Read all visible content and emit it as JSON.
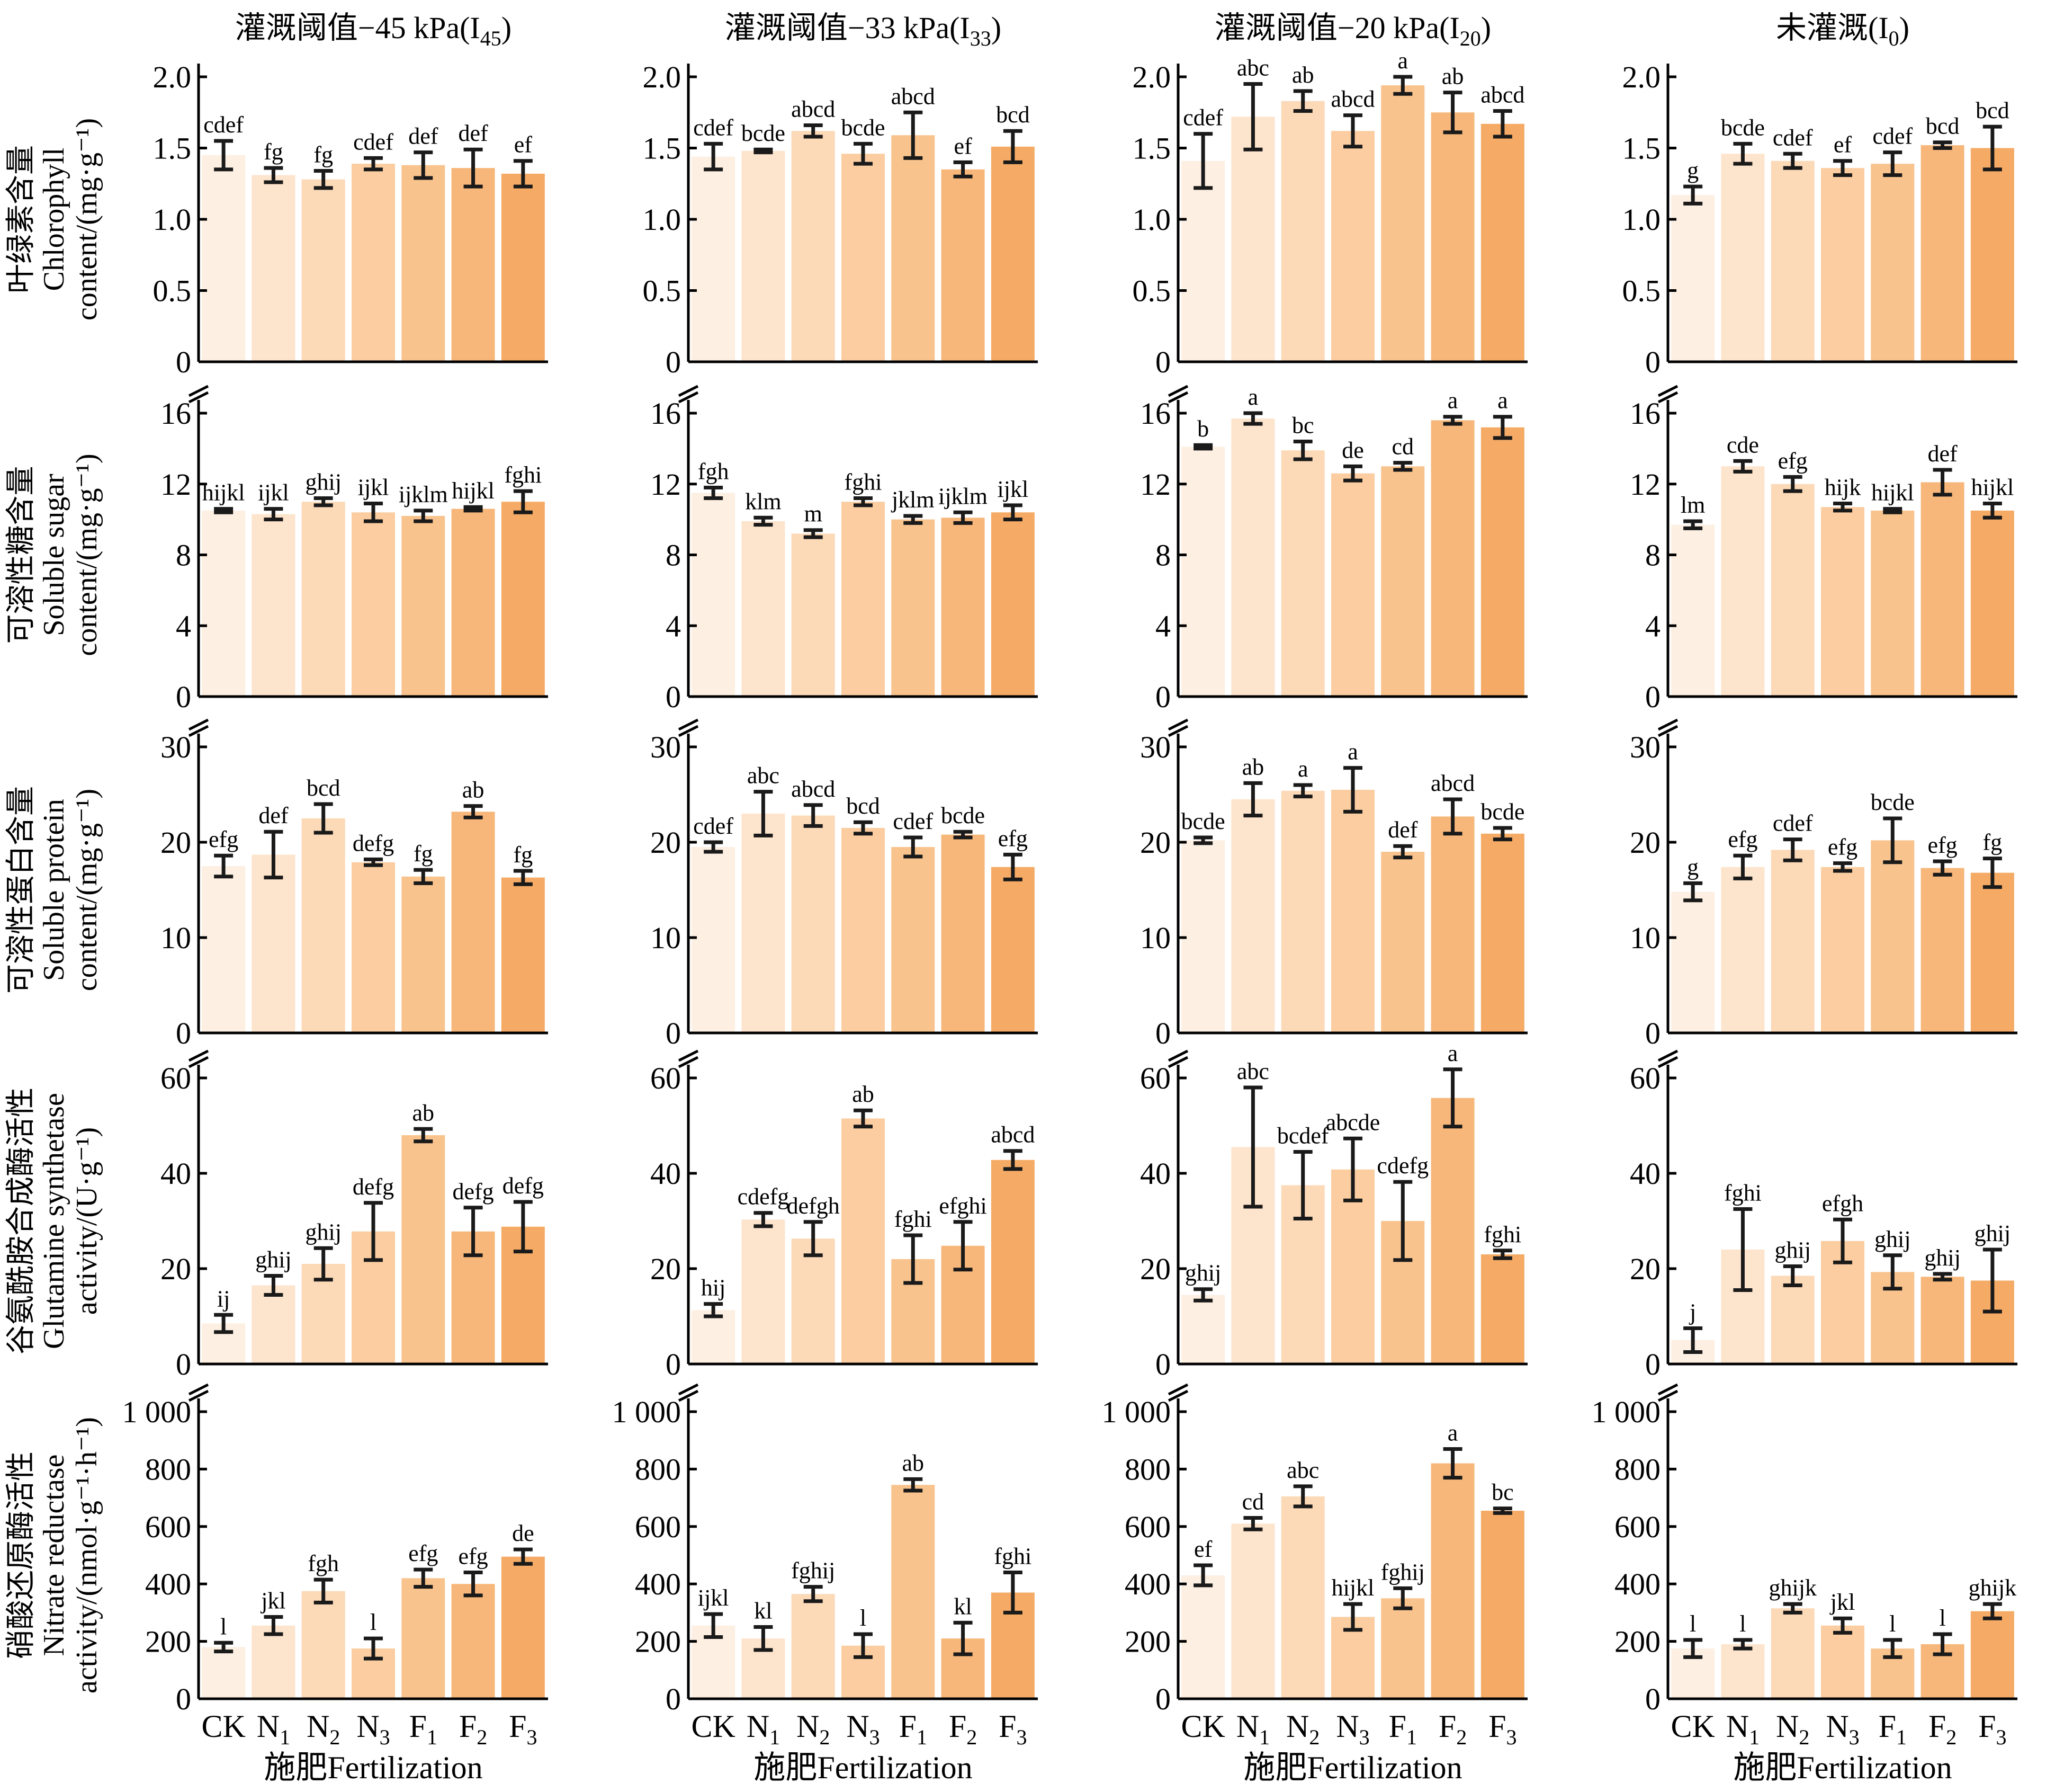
{
  "colors": [
    "#fdefe2",
    "#fde4cc",
    "#fcd9b7",
    "#fbcda0",
    "#f9c38d",
    "#f7b77a",
    "#f5ab66"
  ],
  "column_titles": [
    {
      "text": "灌溉阈值−45 kPa(I",
      "sub": "45",
      "close": ")"
    },
    {
      "text": "灌溉阈值−33 kPa(I",
      "sub": "33",
      "close": ")"
    },
    {
      "text": "灌溉阈值−20 kPa(I",
      "sub": "20",
      "close": ")"
    },
    {
      "text": "未灌溉(I",
      "sub": "0",
      "close": ")"
    }
  ],
  "categories": [
    {
      "main": "CK",
      "sub": ""
    },
    {
      "main": "N",
      "sub": "1"
    },
    {
      "main": "N",
      "sub": "2"
    },
    {
      "main": "N",
      "sub": "3"
    },
    {
      "main": "F",
      "sub": "1"
    },
    {
      "main": "F",
      "sub": "2"
    },
    {
      "main": "F",
      "sub": "3"
    }
  ],
  "xaxis_title": "施肥Fertilization",
  "chart_data": [
    {
      "type": "bar",
      "ylabel_lines": [
        "叶绿素含量",
        "Chlorophyll",
        "content/(mg·g⁻¹)"
      ],
      "ylim": [
        0,
        2.0
      ],
      "yticks": [
        0,
        0.5,
        1.0,
        1.5,
        2.0
      ],
      "ytick_labels": [
        "0",
        "0.5",
        "1.0",
        "1.5",
        "2.0"
      ],
      "series": [
        {
          "values": [
            1.45,
            1.31,
            1.28,
            1.39,
            1.38,
            1.36,
            1.32
          ],
          "errors": [
            0.1,
            0.05,
            0.06,
            0.04,
            0.09,
            0.13,
            0.09
          ],
          "letters": [
            "cdef",
            "fg",
            "fg",
            "cdef",
            "def",
            "def",
            "ef"
          ]
        },
        {
          "values": [
            1.44,
            1.48,
            1.62,
            1.46,
            1.59,
            1.35,
            1.51
          ],
          "errors": [
            0.09,
            0.01,
            0.04,
            0.07,
            0.16,
            0.05,
            0.11
          ],
          "letters": [
            "cdef",
            "bcde",
            "abcd",
            "bcde",
            "abcd",
            "ef",
            "bcd"
          ]
        },
        {
          "values": [
            1.41,
            1.72,
            1.83,
            1.62,
            1.94,
            1.75,
            1.67
          ],
          "errors": [
            0.19,
            0.23,
            0.07,
            0.11,
            0.06,
            0.14,
            0.09
          ],
          "letters": [
            "cdef",
            "abc",
            "ab",
            "abcd",
            "a",
            "ab",
            "abcd"
          ]
        },
        {
          "values": [
            1.17,
            1.46,
            1.41,
            1.36,
            1.39,
            1.52,
            1.5
          ],
          "errors": [
            0.06,
            0.07,
            0.05,
            0.05,
            0.08,
            0.02,
            0.15
          ],
          "letters": [
            "g",
            "bcde",
            "cdef",
            "ef",
            "cdef",
            "bcd",
            "bcd"
          ]
        }
      ]
    },
    {
      "type": "bar",
      "ylabel_lines": [
        "可溶性糖含量",
        "Soluble sugar",
        "content/(mg·g⁻¹)"
      ],
      "ylim": [
        0,
        16
      ],
      "yticks": [
        0,
        4,
        8,
        12,
        16
      ],
      "ytick_labels": [
        "0",
        "4",
        "8",
        "12",
        "16"
      ],
      "series": [
        {
          "values": [
            10.5,
            10.3,
            11.0,
            10.4,
            10.2,
            10.6,
            11.0
          ],
          "errors": [
            0.1,
            0.3,
            0.2,
            0.5,
            0.3,
            0.1,
            0.6
          ],
          "letters": [
            "hijkl",
            "ijkl",
            "ghij",
            "ijkl",
            "ijklm",
            "hijkl",
            "fghi"
          ]
        },
        {
          "values": [
            11.5,
            9.9,
            9.2,
            11.0,
            10.0,
            10.1,
            10.4
          ],
          "errors": [
            0.3,
            0.2,
            0.2,
            0.2,
            0.2,
            0.3,
            0.4
          ],
          "letters": [
            "fgh",
            "klm",
            "m",
            "fghi",
            "jklm",
            "ijklm",
            "ijkl"
          ]
        },
        {
          "values": [
            14.1,
            15.7,
            13.9,
            12.6,
            13.0,
            15.6,
            15.2
          ],
          "errors": [
            0.1,
            0.3,
            0.5,
            0.4,
            0.2,
            0.2,
            0.6
          ],
          "letters": [
            "b",
            "a",
            "bc",
            "de",
            "cd",
            "a",
            "a"
          ]
        },
        {
          "values": [
            9.7,
            13.0,
            12.0,
            10.7,
            10.5,
            12.1,
            10.5
          ],
          "errors": [
            0.2,
            0.3,
            0.4,
            0.2,
            0.1,
            0.7,
            0.4
          ],
          "letters": [
            "lm",
            "cde",
            "efg",
            "hijk",
            "hijkl",
            "def",
            "hijkl"
          ]
        }
      ]
    },
    {
      "type": "bar",
      "ylabel_lines": [
        "可溶性蛋白含量",
        "Soluble protein",
        "content/(mg·g⁻¹)"
      ],
      "ylim": [
        0,
        30
      ],
      "yticks": [
        0,
        10,
        20,
        30
      ],
      "ytick_labels": [
        "0",
        "10",
        "20",
        "30"
      ],
      "series": [
        {
          "values": [
            17.5,
            18.7,
            22.5,
            17.9,
            16.4,
            23.2,
            16.3
          ],
          "errors": [
            1.1,
            2.4,
            1.5,
            0.3,
            0.7,
            0.6,
            0.7
          ],
          "letters": [
            "efg",
            "def",
            "bcd",
            "defg",
            "fg",
            "ab",
            "fg"
          ]
        },
        {
          "values": [
            19.5,
            23.0,
            22.8,
            21.5,
            19.5,
            20.8,
            17.4
          ],
          "errors": [
            0.5,
            2.3,
            1.1,
            0.6,
            1.0,
            0.3,
            1.3
          ],
          "letters": [
            "cdef",
            "abc",
            "abcd",
            "bcd",
            "cdef",
            "bcde",
            "efg"
          ]
        },
        {
          "values": [
            20.2,
            24.5,
            25.4,
            25.5,
            19.0,
            22.7,
            20.9
          ],
          "errors": [
            0.3,
            1.7,
            0.6,
            2.3,
            0.6,
            1.8,
            0.6
          ],
          "letters": [
            "bcde",
            "ab",
            "a",
            "a",
            "def",
            "abcd",
            "bcde"
          ]
        },
        {
          "values": [
            14.8,
            17.4,
            19.2,
            17.4,
            20.2,
            17.3,
            16.8
          ],
          "errors": [
            0.9,
            1.2,
            1.1,
            0.4,
            2.3,
            0.7,
            1.5
          ],
          "letters": [
            "g",
            "efg",
            "cdef",
            "efg",
            "bcde",
            "efg",
            "fg"
          ]
        }
      ]
    },
    {
      "type": "bar",
      "ylabel_lines": [
        "谷氨酰胺合成酶活性",
        "Glutamine synthetase",
        "activity/(U·g⁻¹)"
      ],
      "ylim": [
        0,
        60
      ],
      "yticks": [
        0,
        20,
        40,
        60
      ],
      "ytick_labels": [
        "0",
        "20",
        "40",
        "60"
      ],
      "series": [
        {
          "values": [
            8.5,
            16.5,
            21.0,
            27.8,
            48.0,
            27.8,
            28.8
          ],
          "errors": [
            1.8,
            2.0,
            3.3,
            6.0,
            1.3,
            5.0,
            5.2
          ],
          "letters": [
            "ij",
            "ghij",
            "ghij",
            "defg",
            "ab",
            "defg",
            "defg"
          ]
        },
        {
          "values": [
            11.3,
            30.3,
            26.3,
            51.5,
            22.0,
            24.8,
            42.8
          ],
          "errors": [
            1.3,
            1.4,
            3.5,
            1.7,
            5.0,
            5.0,
            1.9
          ],
          "letters": [
            "hij",
            "cdefg",
            "defgh",
            "ab",
            "fghi",
            "efghi",
            "abcd"
          ]
        },
        {
          "values": [
            14.5,
            45.5,
            37.5,
            40.8,
            30.0,
            55.8,
            23.0
          ],
          "errors": [
            1.2,
            12.5,
            7.0,
            6.5,
            8.2,
            6.0,
            0.8
          ],
          "letters": [
            "ghij",
            "abc",
            "bcdef",
            "abcde",
            "cdefg",
            "a",
            "fghi"
          ]
        },
        {
          "values": [
            5.0,
            24.0,
            18.5,
            25.8,
            19.3,
            18.3,
            17.5
          ],
          "errors": [
            2.5,
            8.5,
            2.0,
            4.5,
            3.5,
            0.6,
            6.5
          ],
          "letters": [
            "j",
            "fghi",
            "ghij",
            "efgh",
            "ghij",
            "ghij",
            "ghij"
          ]
        }
      ]
    },
    {
      "type": "bar",
      "ylabel_lines": [
        "硝酸还原酶活性",
        "Nitrate reductase",
        "activity/(nmol·g⁻¹·h⁻¹)"
      ],
      "ylim": [
        0,
        1000
      ],
      "yticks": [
        0,
        200,
        400,
        600,
        800,
        1000
      ],
      "ytick_labels": [
        "0",
        "200",
        "400",
        "600",
        "800",
        "1 000"
      ],
      "series": [
        {
          "values": [
            180,
            255,
            375,
            175,
            420,
            400,
            495
          ],
          "errors": [
            15,
            30,
            40,
            35,
            30,
            40,
            25
          ],
          "letters": [
            "l",
            "jkl",
            "fgh",
            "l",
            "efg",
            "efg",
            "de"
          ]
        },
        {
          "values": [
            255,
            210,
            365,
            185,
            745,
            210,
            370
          ],
          "errors": [
            40,
            40,
            25,
            40,
            20,
            55,
            70
          ],
          "letters": [
            "ijkl",
            "kl",
            "fghij",
            "l",
            "ab",
            "kl",
            "fghi"
          ]
        },
        {
          "values": [
            430,
            610,
            705,
            285,
            350,
            820,
            655
          ],
          "errors": [
            35,
            20,
            35,
            45,
            35,
            50,
            8
          ],
          "letters": [
            "ef",
            "cd",
            "abc",
            "hijkl",
            "fghij",
            "a",
            "bc"
          ]
        },
        {
          "values": [
            175,
            190,
            315,
            255,
            175,
            190,
            305
          ],
          "errors": [
            30,
            15,
            15,
            25,
            30,
            35,
            25
          ],
          "letters": [
            "l",
            "l",
            "ghijk",
            "jkl",
            "l",
            "l",
            "ghijk"
          ]
        }
      ]
    }
  ]
}
